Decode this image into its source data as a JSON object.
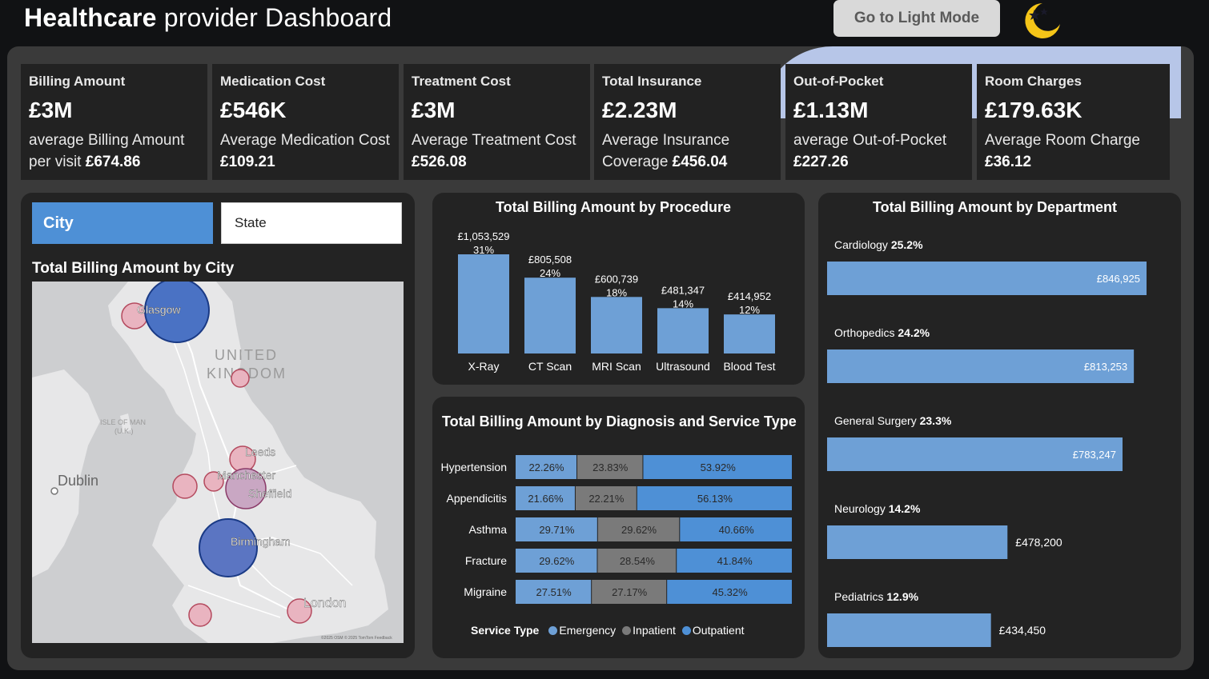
{
  "header": {
    "title_bold": "Healthcare",
    "title_rest": " provider Dashboard",
    "light_mode_button": "Go to Light Mode"
  },
  "kpis": [
    {
      "label": "Billing Amount",
      "value": "£3M",
      "sub_text": "average Billing Amount per visit ",
      "sub_value": "£674.86"
    },
    {
      "label": "Medication Cost",
      "value": "£546K",
      "sub_text": "Average Medication Cost ",
      "sub_value": "£109.21"
    },
    {
      "label": "Treatment Cost",
      "value": "£3M",
      "sub_text": "Average Treatment Cost ",
      "sub_value": "£526.08"
    },
    {
      "label": "Total Insurance",
      "value": "£2.23M",
      "sub_text": "Average Insurance Coverage ",
      "sub_value": "£456.04"
    },
    {
      "label": "Out-of-Pocket",
      "value": "£1.13M",
      "sub_text": "average Out-of-Pocket ",
      "sub_value": "£227.26"
    },
    {
      "label": "Room Charges",
      "value": "£179.63K",
      "sub_text": "Average Room Charge ",
      "sub_value": "£36.12"
    }
  ],
  "slicer": {
    "city": "City",
    "state": "State"
  },
  "map": {
    "title": "Total Billing Amount by City",
    "country_label_1": "UNITED",
    "country_label_2": "KINGDOM",
    "isle_label_1": "ISLE OF MAN",
    "isle_label_2": "(U.K.)",
    "dublin_label": "Dublin",
    "attribution": "©2025 OSM  © 2025 TomTom  Feedback",
    "cities": [
      {
        "name": "Glasgow",
        "size": "large",
        "color": "#4a72c4"
      },
      {
        "name": "Leeds",
        "size": "small",
        "color": "#e9b4c0"
      },
      {
        "name": "Manchester",
        "size": "small",
        "color": "#e9b4c0"
      },
      {
        "name": "Sheffield",
        "size": "medium",
        "color": "#c9a7c3"
      },
      {
        "name": "Birmingham",
        "size": "large",
        "color": "#5b75c2"
      },
      {
        "name": "London",
        "size": "small",
        "color": "#e9b4c0"
      }
    ]
  },
  "procedure_chart": {
    "title": "Total Billing Amount by Procedure"
  },
  "diagnosis_chart": {
    "title": "Total Billing Amount by Diagnosis and Service Type",
    "legend_title": "Service Type",
    "legend": [
      {
        "name": "Emergency",
        "color": "#6ea0d6"
      },
      {
        "name": "Inpatient",
        "color": "#7a7a7a"
      },
      {
        "name": "Outpatient",
        "color": "#4e90d6"
      }
    ]
  },
  "department_chart": {
    "title": "Total Billing Amount by Department"
  },
  "chart_data": [
    {
      "type": "bar",
      "title": "Total Billing Amount by Procedure",
      "categories": [
        "X-Ray",
        "CT Scan",
        "MRI Scan",
        "Ultrasound",
        "Blood Test"
      ],
      "values": [
        1053529,
        805508,
        600739,
        481347,
        414952
      ],
      "value_labels": [
        "£1,053,529",
        "£805,508",
        "£600,739",
        "£481,347",
        "£414,952"
      ],
      "percent_labels": [
        "31%",
        "24%",
        "18%",
        "14%",
        "12%"
      ],
      "color": "#6ea0d6"
    },
    {
      "type": "bar",
      "orientation": "horizontal-stacked-100",
      "title": "Total Billing Amount by Diagnosis and Service Type",
      "categories": [
        "Hypertension",
        "Appendicitis",
        "Asthma",
        "Fracture",
        "Migraine"
      ],
      "series": [
        {
          "name": "Emergency",
          "values": [
            22.26,
            21.66,
            29.71,
            29.62,
            27.51
          ],
          "labels": [
            "22.26%",
            "21.66%",
            "29.71%",
            "29.62%",
            "27.51%"
          ],
          "color": "#6ea0d6"
        },
        {
          "name": "Inpatient",
          "values": [
            23.83,
            22.21,
            29.62,
            28.54,
            27.17
          ],
          "labels": [
            "23.83%",
            "22.21%",
            "29.62%",
            "28.54%",
            "27.17%"
          ],
          "color": "#7a7a7a"
        },
        {
          "name": "Outpatient",
          "values": [
            53.92,
            56.13,
            40.66,
            41.84,
            45.32
          ],
          "labels": [
            "53.92%",
            "56.13%",
            "40.66%",
            "41.84%",
            "45.32%"
          ],
          "color": "#4e90d6"
        }
      ]
    },
    {
      "type": "bar",
      "orientation": "horizontal",
      "title": "Total Billing Amount by Department",
      "categories": [
        "Cardiology",
        "Orthopedics",
        "General Surgery",
        "Neurology",
        "Pediatrics"
      ],
      "percents": [
        "25.2%",
        "24.2%",
        "23.3%",
        "14.2%",
        "12.9%"
      ],
      "values": [
        846925,
        813253,
        783247,
        478200,
        434450
      ],
      "value_labels": [
        "£846,925",
        "£813,253",
        "£783,247",
        "£478,200",
        "£434,450"
      ],
      "color": "#6ea0d6"
    }
  ]
}
